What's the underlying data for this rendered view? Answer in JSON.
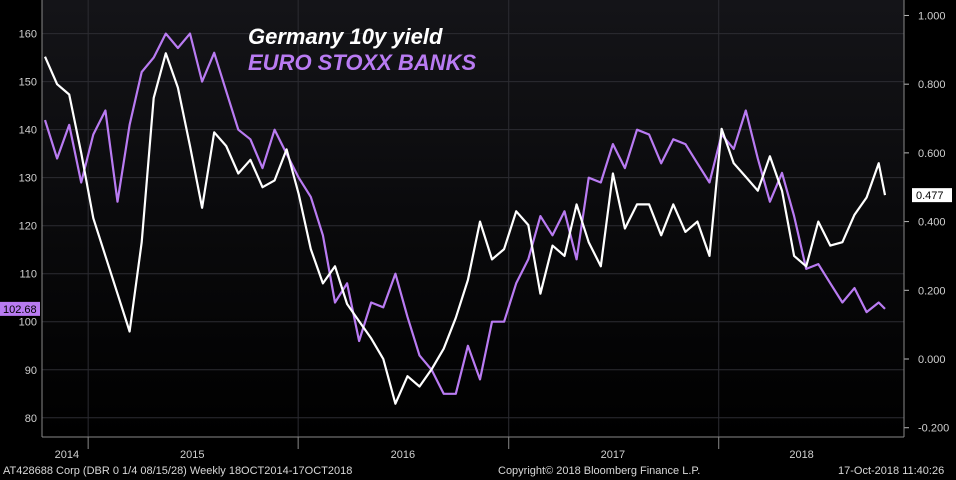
{
  "chart_data": {
    "type": "line",
    "title_lines": [
      "Germany 10y yield",
      "EURO STOXX BANKS"
    ],
    "x_labels": [
      "2014",
      "2015",
      "2016",
      "2017",
      "2018"
    ],
    "y_left": {
      "ticks": [
        80,
        90,
        100,
        110,
        120,
        130,
        140,
        150,
        160
      ],
      "lim": [
        76,
        167
      ]
    },
    "y_right": {
      "ticks": [
        "1.000",
        "0.800",
        "0.600",
        "0.400",
        "0.200",
        "0.000",
        "-0.200"
      ],
      "tick_values": [
        1.0,
        0.8,
        0.6,
        0.4,
        0.2,
        0.0,
        -0.2
      ],
      "lim": [
        -0.227,
        1.045
      ]
    },
    "x_range": [
      "2014-10-18",
      "2018-10-17"
    ],
    "grid": true,
    "series": [
      {
        "name": "EURO STOXX BANKS",
        "axis": "left",
        "color": "#b97bf2",
        "last_value_label": "102.68",
        "x": [
          "2014-10-18",
          "2014-11-08",
          "2014-11-29",
          "2014-12-20",
          "2015-01-10",
          "2015-01-31",
          "2015-02-21",
          "2015-03-14",
          "2015-04-04",
          "2015-04-25",
          "2015-05-16",
          "2015-06-06",
          "2015-06-27",
          "2015-07-18",
          "2015-08-08",
          "2015-08-29",
          "2015-09-19",
          "2015-10-10",
          "2015-10-31",
          "2015-11-21",
          "2015-12-12",
          "2016-01-02",
          "2016-01-23",
          "2016-02-13",
          "2016-03-05",
          "2016-03-26",
          "2016-04-16",
          "2016-05-07",
          "2016-05-28",
          "2016-06-18",
          "2016-07-09",
          "2016-07-30",
          "2016-08-20",
          "2016-09-10",
          "2016-10-01",
          "2016-10-22",
          "2016-11-12",
          "2016-12-03",
          "2016-12-24",
          "2017-01-14",
          "2017-02-04",
          "2017-02-25",
          "2017-03-18",
          "2017-04-08",
          "2017-04-29",
          "2017-05-20",
          "2017-06-10",
          "2017-07-01",
          "2017-07-22",
          "2017-08-12",
          "2017-09-02",
          "2017-09-23",
          "2017-10-14",
          "2017-11-04",
          "2017-11-25",
          "2017-12-16",
          "2018-01-06",
          "2018-01-27",
          "2018-02-17",
          "2018-03-10",
          "2018-03-31",
          "2018-04-21",
          "2018-05-12",
          "2018-06-02",
          "2018-06-23",
          "2018-07-14",
          "2018-08-04",
          "2018-08-25",
          "2018-09-15",
          "2018-10-06",
          "2018-10-17"
        ],
        "values": [
          142,
          134,
          141,
          129,
          139,
          144,
          125,
          141,
          152,
          155,
          160,
          157,
          160,
          150,
          156,
          148,
          140,
          138,
          132,
          140,
          135,
          130,
          126,
          118,
          104,
          108,
          96,
          104,
          103,
          110,
          101,
          93,
          90,
          85,
          85,
          95,
          88,
          100,
          100,
          108,
          113,
          122,
          118,
          123,
          113,
          130,
          129,
          137,
          132,
          140,
          139,
          133,
          138,
          137,
          133,
          129,
          139,
          136,
          144,
          134,
          125,
          131,
          122,
          111,
          112,
          108,
          104,
          107,
          102,
          104,
          102.68
        ]
      },
      {
        "name": "Germany 10y yield",
        "axis": "right",
        "color": "#ffffff",
        "last_value_label": "0.477",
        "x": [
          "2014-10-18",
          "2014-11-08",
          "2014-11-29",
          "2014-12-20",
          "2015-01-10",
          "2015-01-31",
          "2015-02-21",
          "2015-03-14",
          "2015-04-04",
          "2015-04-25",
          "2015-05-16",
          "2015-06-06",
          "2015-06-27",
          "2015-07-18",
          "2015-08-08",
          "2015-08-29",
          "2015-09-19",
          "2015-10-10",
          "2015-10-31",
          "2015-11-21",
          "2015-12-12",
          "2016-01-02",
          "2016-01-23",
          "2016-02-13",
          "2016-03-05",
          "2016-03-26",
          "2016-04-16",
          "2016-05-07",
          "2016-05-28",
          "2016-06-18",
          "2016-07-09",
          "2016-07-30",
          "2016-08-20",
          "2016-09-10",
          "2016-10-01",
          "2016-10-22",
          "2016-11-12",
          "2016-12-03",
          "2016-12-24",
          "2017-01-14",
          "2017-02-04",
          "2017-02-25",
          "2017-03-18",
          "2017-04-08",
          "2017-04-29",
          "2017-05-20",
          "2017-06-10",
          "2017-07-01",
          "2017-07-22",
          "2017-08-12",
          "2017-09-02",
          "2017-09-23",
          "2017-10-14",
          "2017-11-04",
          "2017-11-25",
          "2017-12-16",
          "2018-01-06",
          "2018-01-27",
          "2018-02-17",
          "2018-03-10",
          "2018-03-31",
          "2018-04-21",
          "2018-05-12",
          "2018-06-02",
          "2018-06-23",
          "2018-07-14",
          "2018-08-04",
          "2018-08-25",
          "2018-09-15",
          "2018-10-06",
          "2018-10-17"
        ],
        "values": [
          0.88,
          0.8,
          0.77,
          0.6,
          0.41,
          0.3,
          0.19,
          0.08,
          0.34,
          0.76,
          0.89,
          0.79,
          0.62,
          0.44,
          0.66,
          0.62,
          0.54,
          0.58,
          0.5,
          0.52,
          0.61,
          0.48,
          0.32,
          0.22,
          0.27,
          0.16,
          0.11,
          0.06,
          0.0,
          -0.13,
          -0.05,
          -0.08,
          -0.03,
          0.03,
          0.12,
          0.23,
          0.4,
          0.29,
          0.32,
          0.43,
          0.39,
          0.19,
          0.33,
          0.3,
          0.45,
          0.34,
          0.27,
          0.54,
          0.38,
          0.45,
          0.45,
          0.36,
          0.45,
          0.37,
          0.4,
          0.3,
          0.67,
          0.57,
          0.53,
          0.49,
          0.59,
          0.49,
          0.3,
          0.27,
          0.4,
          0.33,
          0.34,
          0.42,
          0.47,
          0.57,
          0.477
        ]
      }
    ]
  },
  "footer": {
    "security": "AT428688 Corp  (DBR 0 1/4 08/15/28)  Weekly 18OCT2014-17OCT2018",
    "copyright": "Copyright© 2018 Bloomberg Finance L.P.",
    "timestamp": "17-Oct-2018 11:40:26"
  }
}
